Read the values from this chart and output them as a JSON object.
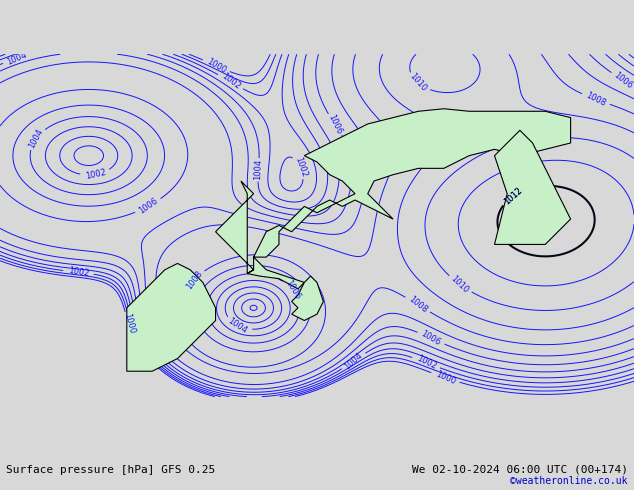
{
  "title_left": "Surface pressure [hPa] GFS 0.25",
  "title_right": "We 02-10-2024 06:00 UTC (00+174)",
  "copyright": "©weatheronline.co.uk",
  "bg_color": "#d8d8d8",
  "land_color": "#c8f0c8",
  "fig_width": 6.34,
  "fig_height": 4.9,
  "bottom_bar_color": "#e8e8e8",
  "text_color_left": "#000000",
  "text_color_right": "#000000",
  "copyright_color": "#0000cc"
}
